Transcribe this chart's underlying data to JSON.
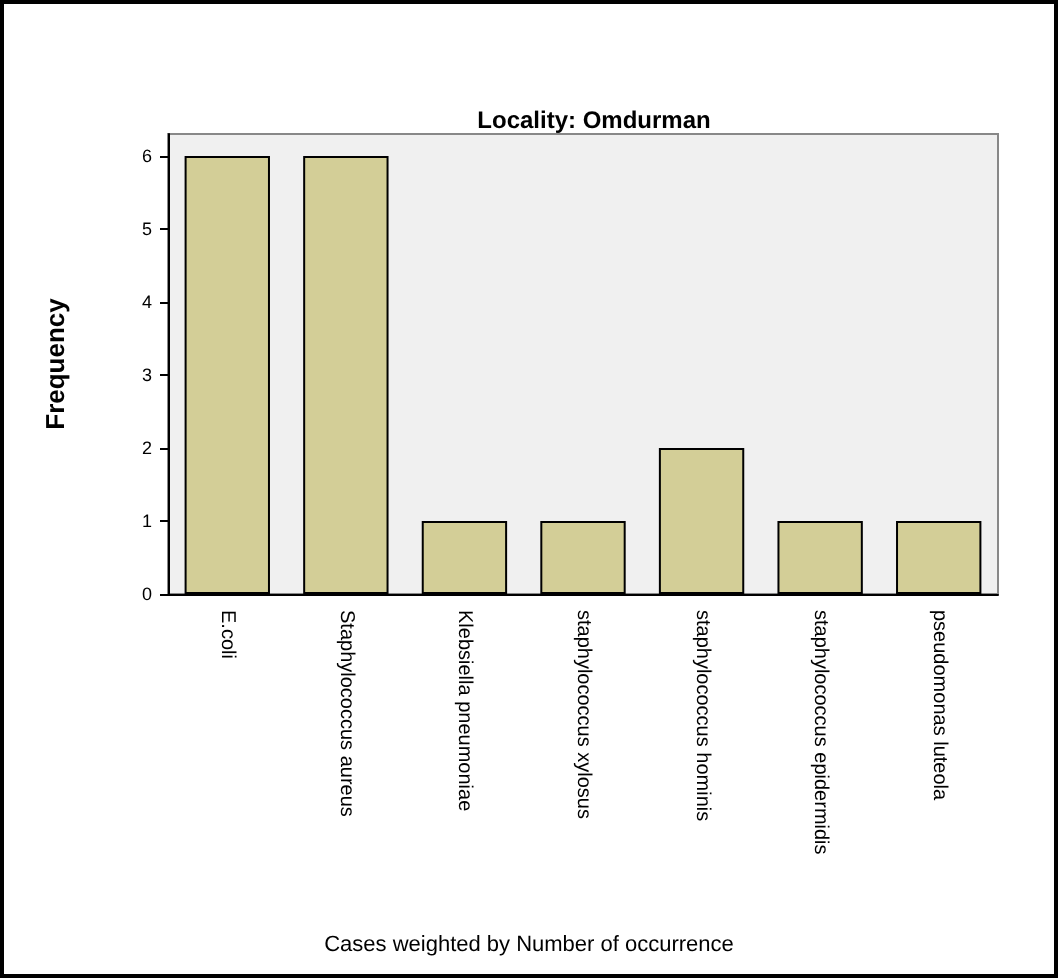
{
  "chart_data": {
    "type": "bar",
    "title": "Locality: Omdurman",
    "ylabel": "Frequency",
    "categories": [
      "E.coli",
      "Staphylococcus aureus",
      "Klebsiella pneumoniae",
      "staphylococcus xylosus",
      "staphylococcus hominis",
      "staphylococcus epidermidis",
      "pseudomonas luteola"
    ],
    "values": [
      6,
      6,
      1,
      1,
      2,
      1,
      1
    ],
    "color": "#d3ce97",
    "ylim": [
      0,
      6.3
    ],
    "yticks": [
      0,
      1,
      2,
      3,
      4,
      5,
      6
    ],
    "grid": false,
    "annotations": [
      "Cases weighted by Number of occurrence"
    ]
  }
}
